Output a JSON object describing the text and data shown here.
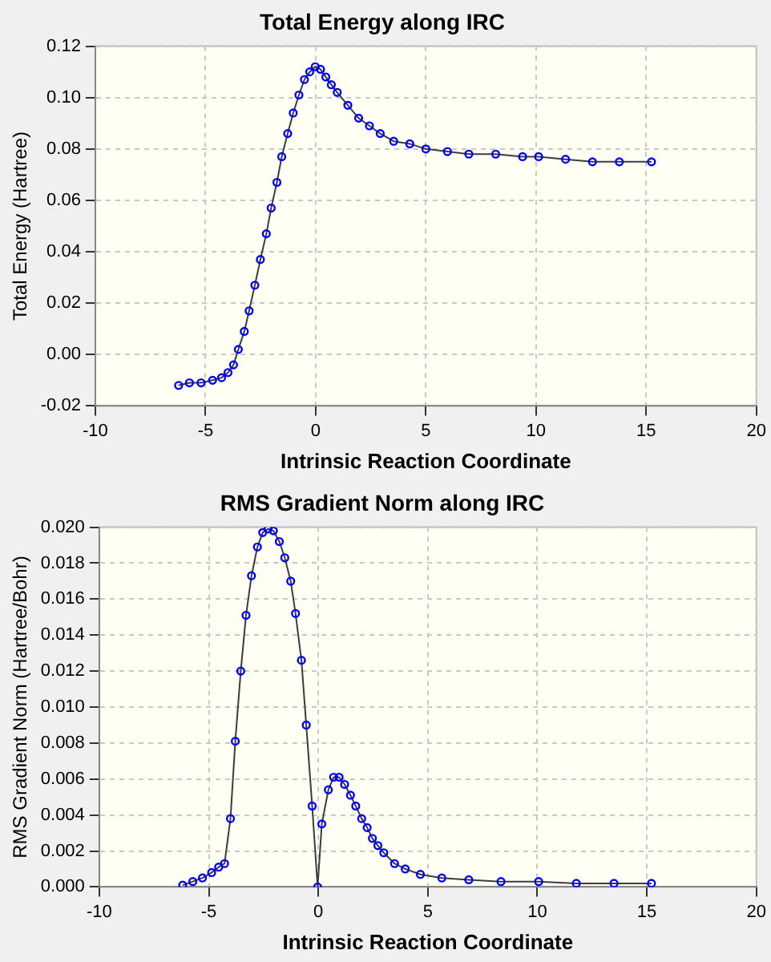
{
  "chart_data": [
    {
      "type": "line",
      "title": "Total Energy along IRC",
      "xlabel": "Intrinsic Reaction Coordinate",
      "ylabel": "Total Energy (Hartree)",
      "color": "#0000ff",
      "marker": "circle",
      "line_style": "solid",
      "grid": true,
      "legend": false,
      "x": [
        -6.22,
        -5.73,
        -5.2,
        -4.68,
        -4.27,
        -3.98,
        -3.73,
        -3.51,
        -3.24,
        -3.02,
        -2.76,
        -2.51,
        -2.24,
        -2.02,
        -1.76,
        -1.54,
        -1.27,
        -1.02,
        -0.76,
        -0.51,
        -0.27,
        -0.02,
        0.22,
        0.46,
        0.71,
        0.98,
        1.46,
        1.95,
        2.44,
        2.93,
        3.54,
        4.27,
        5.0,
        5.98,
        6.95,
        8.17,
        9.39,
        10.12,
        11.34,
        12.56,
        13.78,
        15.24
      ],
      "values": [
        -0.012,
        -0.011,
        -0.011,
        -0.01,
        -0.009,
        -0.007,
        -0.004,
        0.002,
        0.009,
        0.017,
        0.027,
        0.037,
        0.047,
        0.057,
        0.067,
        0.077,
        0.086,
        0.094,
        0.101,
        0.107,
        0.11,
        0.112,
        0.111,
        0.108,
        0.105,
        0.102,
        0.097,
        0.092,
        0.089,
        0.086,
        0.083,
        0.082,
        0.08,
        0.079,
        0.078,
        0.078,
        0.077,
        0.077,
        0.076,
        0.075,
        0.075,
        0.075
      ],
      "xlim": [
        -10,
        20
      ],
      "xticks": [
        -10,
        -5,
        0,
        5,
        10,
        15,
        20
      ],
      "ylim": [
        -0.02,
        0.12
      ],
      "yticks": [
        {
          "value": -0.02,
          "label": "-0.02"
        },
        {
          "value": 0,
          "label": "0.00"
        },
        {
          "value": 0.02,
          "label": "0.02"
        },
        {
          "value": 0.04,
          "label": "0.04"
        },
        {
          "value": 0.06,
          "label": "0.06"
        },
        {
          "value": 0.08,
          "label": "0.08"
        },
        {
          "value": 0.1,
          "label": "0.10"
        },
        {
          "value": 0.12,
          "label": "0.12"
        }
      ]
    },
    {
      "type": "line",
      "title": "RMS Gradient Norm along IRC",
      "xlabel": "Intrinsic Reaction Coordinate",
      "ylabel": "RMS Gradient Norm (Hartree/Bohr)",
      "color": "#0000ff",
      "marker": "circle",
      "line_style": "solid",
      "grid": true,
      "legend": false,
      "x": [
        -6.19,
        -5.73,
        -5.29,
        -4.87,
        -4.55,
        -4.28,
        -4.01,
        -3.79,
        -3.54,
        -3.3,
        -3.05,
        -2.78,
        -2.54,
        -2.29,
        -2.05,
        -1.78,
        -1.53,
        -1.26,
        -1.04,
        -0.77,
        -0.55,
        -0.28,
        -0.03,
        0.16,
        0.46,
        0.7,
        0.95,
        1.2,
        1.47,
        1.71,
        1.98,
        2.23,
        2.47,
        2.72,
        2.99,
        3.48,
        3.97,
        4.66,
        5.64,
        6.87,
        8.34,
        10.06,
        11.78,
        13.5,
        15.21
      ],
      "values": [
        0.0001,
        0.0003,
        0.0005,
        0.0008,
        0.0011,
        0.0013,
        0.0038,
        0.0081,
        0.012,
        0.0151,
        0.0173,
        0.0189,
        0.0197,
        0.0199,
        0.0198,
        0.0192,
        0.0183,
        0.017,
        0.0152,
        0.0126,
        0.009,
        0.0045,
        0.0,
        0.0035,
        0.0054,
        0.0061,
        0.0061,
        0.0057,
        0.0051,
        0.0045,
        0.0038,
        0.0033,
        0.0027,
        0.0023,
        0.0019,
        0.0013,
        0.001,
        0.0007,
        0.0005,
        0.0004,
        0.0003,
        0.0003,
        0.0002,
        0.0002,
        0.0002
      ],
      "xlim": [
        -10,
        20
      ],
      "xticks": [
        -10,
        -5,
        0,
        5,
        10,
        15,
        20
      ],
      "ylim": [
        0,
        0.02
      ],
      "yticks": [
        {
          "value": 0,
          "label": "0.000"
        },
        {
          "value": 0.002,
          "label": "0.002"
        },
        {
          "value": 0.004,
          "label": "0.004"
        },
        {
          "value": 0.006,
          "label": "0.006"
        },
        {
          "value": 0.008,
          "label": "0.008"
        },
        {
          "value": 0.01,
          "label": "0.010"
        },
        {
          "value": 0.012,
          "label": "0.012"
        },
        {
          "value": 0.014,
          "label": "0.014"
        },
        {
          "value": 0.016,
          "label": "0.016"
        },
        {
          "value": 0.018,
          "label": "0.018"
        },
        {
          "value": 0.02,
          "label": "0.020"
        }
      ]
    }
  ]
}
